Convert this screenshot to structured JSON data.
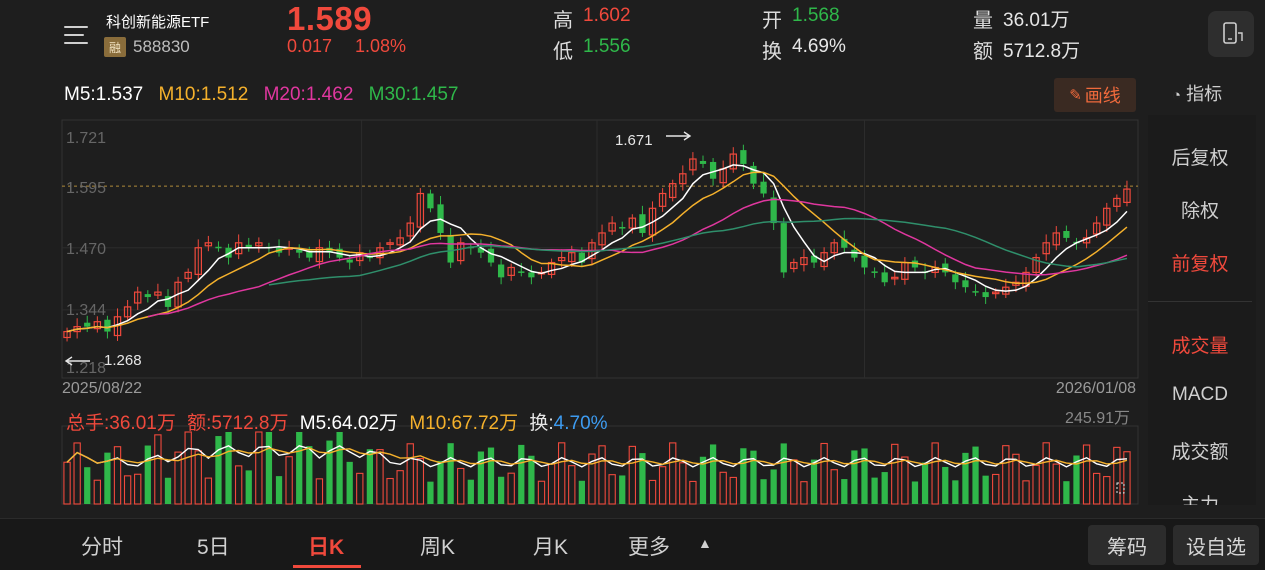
{
  "header": {
    "name": "科创新能源ETF",
    "tag": "融",
    "code": "588830",
    "price": "1.589",
    "change": "0.017",
    "change_pct": "1.08%",
    "high_label": "高",
    "high": "1.602",
    "low_label": "低",
    "low": "1.556",
    "open_label": "开",
    "open": "1.568",
    "turnover_label": "换",
    "turnover": "4.69%",
    "volume_label": "量",
    "volume": "36.01万",
    "amount_label": "额",
    "amount": "5712.8万"
  },
  "ma": {
    "m5": "M5:1.537",
    "m10": "M10:1.512",
    "m20": "M20:1.462",
    "m30": "M30:1.457"
  },
  "toolbar": {
    "draw_label": "画线",
    "indicator_label": "指标"
  },
  "side": {
    "items": [
      "后复权",
      "除权",
      "前复权",
      "成交量",
      "MACD",
      "成交额",
      "主力"
    ]
  },
  "axis": {
    "y_ticks": [
      "1.721",
      "1.595",
      "1.470",
      "1.344",
      "1.218"
    ],
    "start_date": "2025/08/22",
    "end_date": "2026/01/08",
    "max_label": "1.671",
    "min_label": "1.268"
  },
  "volume": {
    "total": "总手:36.01万",
    "amount": "额:5712.8万",
    "m5": "M5:64.02万",
    "m10": "M10:67.72万",
    "turnover_label": "换:",
    "turnover": "4.70%",
    "max": "245.91万"
  },
  "tabs": [
    "分时",
    "5日",
    "日K",
    "周K",
    "月K",
    "更多"
  ],
  "bottom_buttons": [
    "筹码",
    "设自选"
  ],
  "colors": {
    "up": "#f0493c",
    "down": "#2fb84a",
    "ma5": "#ffffff",
    "ma10": "#f5b12c",
    "ma20": "#e0379f",
    "ma30": "#2f8f6b"
  },
  "chart_data": {
    "type": "candlestick",
    "price_axis": [
      1.218,
      1.721
    ],
    "closes": [
      1.3,
      1.31,
      1.31,
      1.32,
      1.3,
      1.33,
      1.35,
      1.38,
      1.37,
      1.38,
      1.35,
      1.4,
      1.42,
      1.47,
      1.48,
      1.47,
      1.45,
      1.48,
      1.47,
      1.48,
      1.47,
      1.46,
      1.47,
      1.46,
      1.45,
      1.47,
      1.46,
      1.45,
      1.44,
      1.46,
      1.45,
      1.47,
      1.48,
      1.49,
      1.52,
      1.58,
      1.55,
      1.5,
      1.44,
      1.48,
      1.47,
      1.46,
      1.44,
      1.41,
      1.43,
      1.42,
      1.41,
      1.42,
      1.44,
      1.45,
      1.46,
      1.44,
      1.48,
      1.5,
      1.52,
      1.51,
      1.53,
      1.5,
      1.55,
      1.58,
      1.6,
      1.62,
      1.65,
      1.64,
      1.61,
      1.63,
      1.66,
      1.64,
      1.6,
      1.58,
      1.52,
      1.42,
      1.44,
      1.45,
      1.44,
      1.46,
      1.48,
      1.47,
      1.45,
      1.43,
      1.42,
      1.4,
      1.41,
      1.44,
      1.43,
      1.42,
      1.43,
      1.42,
      1.4,
      1.39,
      1.38,
      1.37,
      1.38,
      1.39,
      1.4,
      1.42,
      1.45,
      1.48,
      1.5,
      1.49,
      1.48,
      1.49,
      1.52,
      1.55,
      1.57,
      1.589
    ],
    "volume_axis_max": 245.91
  }
}
